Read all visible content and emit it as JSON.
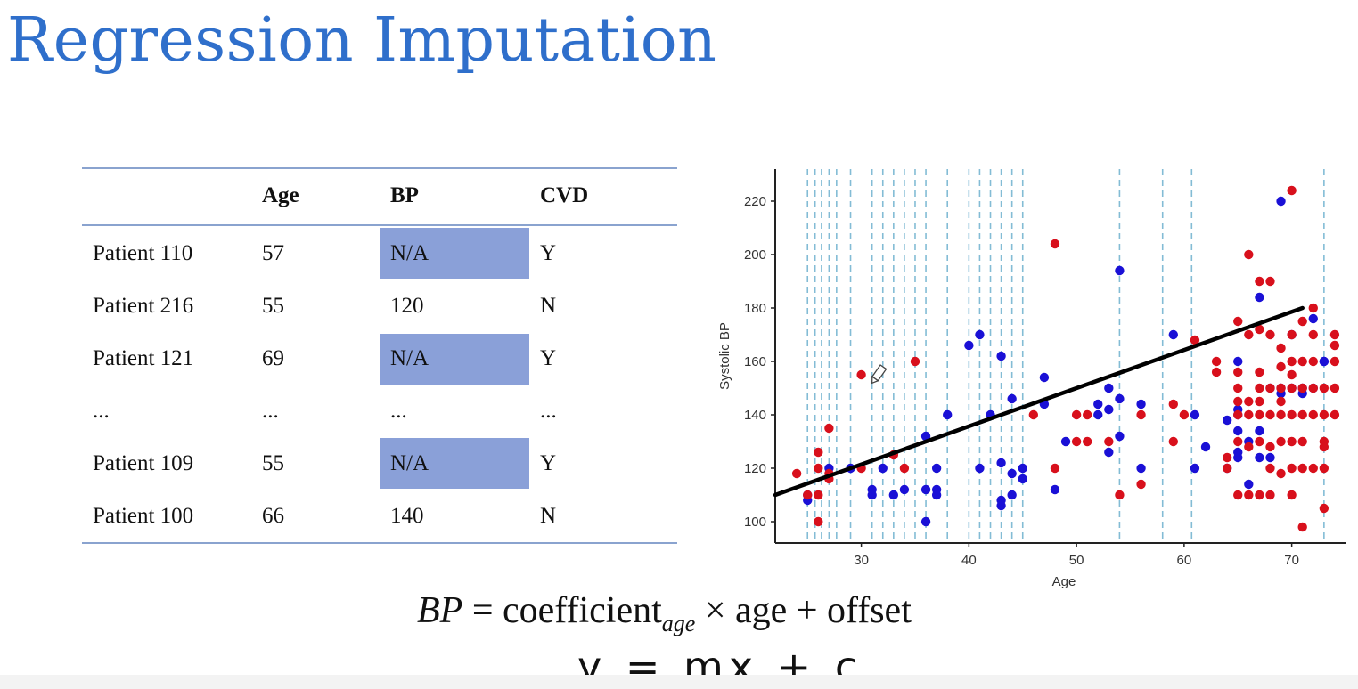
{
  "slide": {
    "title": "Regression Imputation"
  },
  "table": {
    "headers": [
      "",
      "Age",
      "BP",
      "CVD"
    ],
    "rows": [
      {
        "patient": "Patient 110",
        "age": "57",
        "bp": "N/A",
        "cvd": "Y",
        "missing": true
      },
      {
        "patient": "Patient 216",
        "age": "55",
        "bp": "120",
        "cvd": "N",
        "missing": false
      },
      {
        "patient": "Patient 121",
        "age": "69",
        "bp": "N/A",
        "cvd": "Y",
        "missing": true
      },
      {
        "patient": "...",
        "age": "...",
        "bp": "...",
        "cvd": "...",
        "missing": false
      },
      {
        "patient": "Patient 109",
        "age": "55",
        "bp": "N/A",
        "cvd": "Y",
        "missing": true
      },
      {
        "patient": "Patient 100",
        "age": "66",
        "bp": "140",
        "cvd": "N",
        "missing": false
      }
    ],
    "highlight_color": "#8aa0d8"
  },
  "formula": {
    "lhs": "BP",
    "equals": " = coefficient",
    "subscript": "age",
    "rhs": " × age + offset"
  },
  "handwriting": {
    "text": "y = mx + c"
  },
  "chart_data": {
    "type": "scatter",
    "xlabel": "Age",
    "ylabel": "Systolic BP",
    "xlim": [
      22,
      75
    ],
    "ylim": [
      92,
      232
    ],
    "xticks": [
      30,
      40,
      50,
      60,
      70
    ],
    "yticks": [
      100,
      120,
      140,
      160,
      180,
      200,
      220
    ],
    "colors": {
      "blue": "#1a10d6",
      "red": "#d8101c",
      "line": "#000000",
      "dashed": "#5aa6c8"
    },
    "dashed_x": [
      25,
      25.7,
      26.3,
      27,
      27.7,
      29,
      31,
      32,
      33,
      34,
      35,
      36,
      38,
      40,
      41,
      42,
      43,
      44,
      45,
      54,
      58,
      60.7,
      73
    ],
    "regression_line": {
      "x": [
        22,
        71
      ],
      "y": [
        110,
        180
      ]
    },
    "series": [
      {
        "color": "blue",
        "points": [
          [
            25,
            108
          ],
          [
            25,
            110
          ],
          [
            27,
            120
          ],
          [
            29,
            120
          ],
          [
            31,
            110
          ],
          [
            31,
            112
          ],
          [
            32,
            120
          ],
          [
            33,
            110
          ],
          [
            34,
            112
          ],
          [
            36,
            100
          ],
          [
            36,
            112
          ],
          [
            36,
            132
          ],
          [
            37,
            110
          ],
          [
            37,
            112
          ],
          [
            37,
            120
          ],
          [
            38,
            140
          ],
          [
            40,
            166
          ],
          [
            41,
            120
          ],
          [
            41,
            170
          ],
          [
            42,
            140
          ],
          [
            43,
            106
          ],
          [
            43,
            108
          ],
          [
            43,
            122
          ],
          [
            43,
            162
          ],
          [
            44,
            110
          ],
          [
            44,
            118
          ],
          [
            44,
            146
          ],
          [
            45,
            116
          ],
          [
            45,
            120
          ],
          [
            47,
            144
          ],
          [
            47,
            154
          ],
          [
            48,
            112
          ],
          [
            49,
            130
          ],
          [
            52,
            140
          ],
          [
            52,
            144
          ],
          [
            53,
            126
          ],
          [
            53,
            142
          ],
          [
            53,
            150
          ],
          [
            54,
            132
          ],
          [
            54,
            146
          ],
          [
            54,
            194
          ],
          [
            56,
            120
          ],
          [
            56,
            144
          ],
          [
            59,
            170
          ],
          [
            61,
            120
          ],
          [
            61,
            140
          ],
          [
            62,
            128
          ],
          [
            64,
            120
          ],
          [
            64,
            138
          ],
          [
            65,
            124
          ],
          [
            65,
            126
          ],
          [
            65,
            134
          ],
          [
            65,
            140
          ],
          [
            65,
            142
          ],
          [
            65,
            160
          ],
          [
            66,
            114
          ],
          [
            66,
            130
          ],
          [
            67,
            124
          ],
          [
            67,
            134
          ],
          [
            67,
            184
          ],
          [
            68,
            124
          ],
          [
            68,
            150
          ],
          [
            69,
            148
          ],
          [
            69,
            150
          ],
          [
            69,
            220
          ],
          [
            70,
            150
          ],
          [
            70,
            170
          ],
          [
            71,
            148
          ],
          [
            71,
            150
          ],
          [
            72,
            150
          ],
          [
            72,
            176
          ],
          [
            73,
            160
          ],
          [
            73,
            160
          ]
        ]
      },
      {
        "color": "red",
        "points": [
          [
            24,
            118
          ],
          [
            25,
            110
          ],
          [
            26,
            120
          ],
          [
            26,
            126
          ],
          [
            26,
            110
          ],
          [
            26,
            100
          ],
          [
            27,
            116
          ],
          [
            27,
            118
          ],
          [
            27,
            135
          ],
          [
            30,
            120
          ],
          [
            30,
            155
          ],
          [
            33,
            125
          ],
          [
            34,
            120
          ],
          [
            35,
            160
          ],
          [
            46,
            140
          ],
          [
            48,
            120
          ],
          [
            48,
            204
          ],
          [
            50,
            140
          ],
          [
            50,
            130
          ],
          [
            51,
            140
          ],
          [
            51,
            130
          ],
          [
            53,
            130
          ],
          [
            54,
            110
          ],
          [
            56,
            114
          ],
          [
            56,
            140
          ],
          [
            59,
            130
          ],
          [
            59,
            144
          ],
          [
            60,
            140
          ],
          [
            61,
            168
          ],
          [
            63,
            156
          ],
          [
            63,
            160
          ],
          [
            64,
            120
          ],
          [
            64,
            124
          ],
          [
            65,
            110
          ],
          [
            65,
            130
          ],
          [
            65,
            140
          ],
          [
            65,
            145
          ],
          [
            65,
            150
          ],
          [
            65,
            156
          ],
          [
            65,
            175
          ],
          [
            66,
            110
          ],
          [
            66,
            128
          ],
          [
            66,
            140
          ],
          [
            66,
            145
          ],
          [
            66,
            170
          ],
          [
            66,
            200
          ],
          [
            67,
            110
          ],
          [
            67,
            130
          ],
          [
            67,
            140
          ],
          [
            67,
            145
          ],
          [
            67,
            150
          ],
          [
            67,
            156
          ],
          [
            67,
            172
          ],
          [
            67,
            190
          ],
          [
            68,
            110
          ],
          [
            68,
            120
          ],
          [
            68,
            128
          ],
          [
            68,
            140
          ],
          [
            68,
            150
          ],
          [
            68,
            170
          ],
          [
            68,
            190
          ],
          [
            69,
            118
          ],
          [
            69,
            130
          ],
          [
            69,
            140
          ],
          [
            69,
            145
          ],
          [
            69,
            150
          ],
          [
            69,
            158
          ],
          [
            69,
            165
          ],
          [
            70,
            110
          ],
          [
            70,
            120
          ],
          [
            70,
            130
          ],
          [
            70,
            140
          ],
          [
            70,
            150
          ],
          [
            70,
            155
          ],
          [
            70,
            160
          ],
          [
            70,
            170
          ],
          [
            70,
            224
          ],
          [
            71,
            98
          ],
          [
            71,
            120
          ],
          [
            71,
            130
          ],
          [
            71,
            140
          ],
          [
            71,
            150
          ],
          [
            71,
            160
          ],
          [
            71,
            175
          ],
          [
            72,
            120
          ],
          [
            72,
            140
          ],
          [
            72,
            150
          ],
          [
            72,
            160
          ],
          [
            72,
            170
          ],
          [
            72,
            180
          ],
          [
            73,
            105
          ],
          [
            73,
            120
          ],
          [
            73,
            128
          ],
          [
            73,
            130
          ],
          [
            73,
            140
          ],
          [
            73,
            150
          ],
          [
            74,
            140
          ],
          [
            74,
            150
          ],
          [
            74,
            160
          ],
          [
            74,
            166
          ],
          [
            74,
            170
          ]
        ]
      }
    ]
  }
}
